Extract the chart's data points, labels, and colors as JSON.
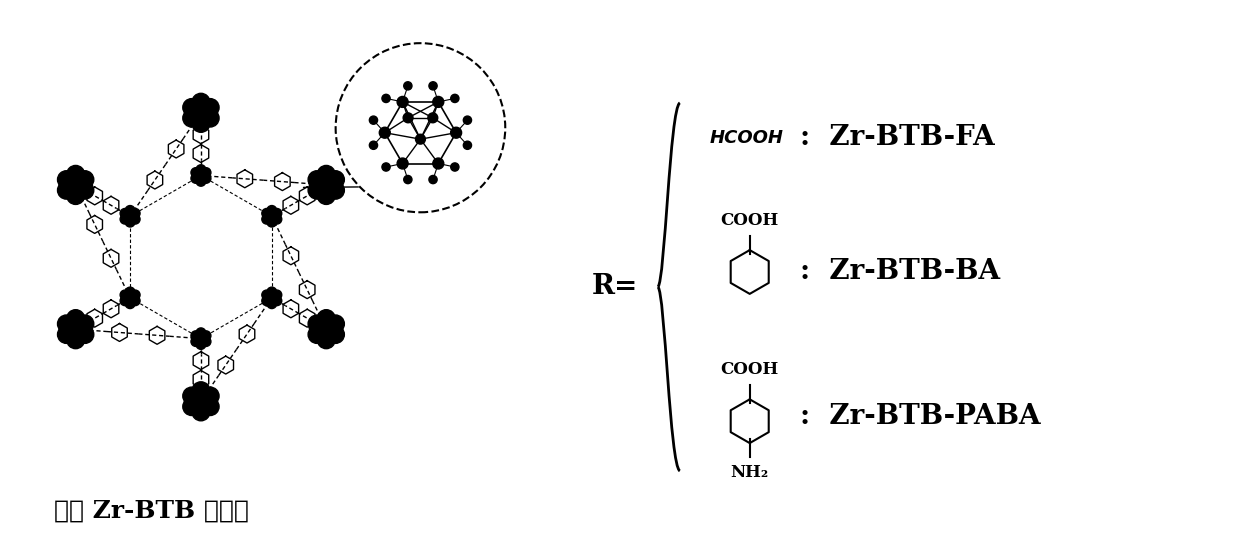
{
  "title": "",
  "background_color": "#ffffff",
  "left_label": "二维 Zr-BTB 纳米片",
  "label_fa": "HCOOH",
  "label_ba": "Zr-BTB-FA",
  "label_ba2": "Zr-BTB-BA",
  "label_paba": "Zr-BTB-PABA",
  "r_label": "R=",
  "cooh_label": "COOH",
  "nh2_label": "NH₂",
  "colon": " :  "
}
